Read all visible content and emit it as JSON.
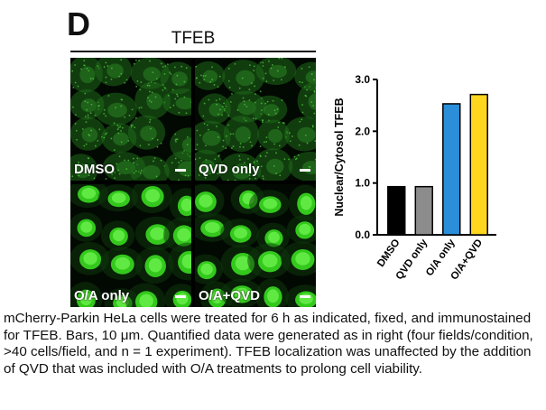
{
  "figure": {
    "panel_letter": "D",
    "panel_title": "TFEB"
  },
  "micrographs": [
    {
      "label": "DMSO",
      "nuclear": false
    },
    {
      "label": "QVD only",
      "nuclear": false
    },
    {
      "label": "O/A only",
      "nuclear": true
    },
    {
      "label": "O/A+QVD",
      "nuclear": true
    }
  ],
  "chart_data": {
    "type": "bar",
    "categories": [
      "DMSO",
      "QVD only",
      "O/A only",
      "O/A+QVD"
    ],
    "values": [
      0.93,
      0.93,
      2.53,
      2.71
    ],
    "colors": [
      "#000000",
      "#8c8c8c",
      "#2a8fd8",
      "#ffd61e"
    ],
    "title": "",
    "xlabel": "",
    "ylabel": "Nuclear/Cytosol TFEB",
    "ylim": [
      0,
      3.0
    ],
    "yticks": [
      "0.0",
      "1.0",
      "2.0",
      "3.0"
    ],
    "ytick_values": [
      0,
      1,
      2,
      3
    ],
    "grid": false
  },
  "caption": "mCherry-Parkin HeLa cells were treated for 6 h as indicated, fixed, and immunostained for TFEB. Bars, 10 μm. Quantified data were generated as in right (four fields/condition, >40 cells/field, and n = 1 experiment). TFEB localization was unaffected by the addition of QVD that was included with O/A treatments to prolong cell viability."
}
